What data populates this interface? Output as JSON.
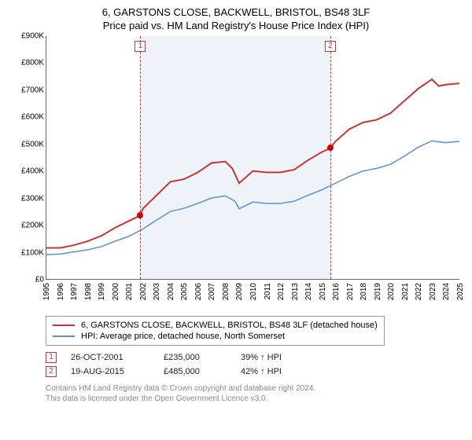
{
  "title": {
    "line1": "6, GARSTONS CLOSE, BACKWELL, BRISTOL, BS48 3LF",
    "line2": "Price paid vs. HM Land Registry's House Price Index (HPI)"
  },
  "chart": {
    "type": "line",
    "x_domain": [
      1995,
      2025
    ],
    "y_domain": [
      0,
      900000
    ],
    "y_ticks": [
      0,
      100000,
      200000,
      300000,
      400000,
      500000,
      600000,
      700000,
      800000,
      900000
    ],
    "y_tick_labels": [
      "£0",
      "£100K",
      "£200K",
      "£300K",
      "£400K",
      "£500K",
      "£600K",
      "£700K",
      "£800K",
      "£900K"
    ],
    "x_ticks": [
      1995,
      1996,
      1997,
      1998,
      1999,
      2000,
      2001,
      2002,
      2003,
      2004,
      2005,
      2006,
      2007,
      2008,
      2009,
      2010,
      2011,
      2012,
      2013,
      2014,
      2015,
      2016,
      2017,
      2018,
      2019,
      2020,
      2021,
      2022,
      2023,
      2024,
      2025
    ],
    "shade_range": [
      2001.82,
      2015.63
    ],
    "shade_color": "#eef3fa",
    "background_color": "#ffffff",
    "axis_color": "#666666",
    "tick_fontsize": 10,
    "series": [
      {
        "id": "property",
        "label": "6, GARSTONS CLOSE, BACKWELL, BRISTOL, BS48 3LF (detached house)",
        "color": "#cc3333",
        "line_width": 2,
        "points": [
          [
            1995,
            115000
          ],
          [
            1996,
            115000
          ],
          [
            1997,
            125000
          ],
          [
            1998,
            140000
          ],
          [
            1999,
            160000
          ],
          [
            2000,
            190000
          ],
          [
            2001,
            215000
          ],
          [
            2001.82,
            235000
          ],
          [
            2002,
            260000
          ],
          [
            2003,
            310000
          ],
          [
            2004,
            360000
          ],
          [
            2005,
            370000
          ],
          [
            2006,
            395000
          ],
          [
            2007,
            430000
          ],
          [
            2008,
            435000
          ],
          [
            2008.5,
            410000
          ],
          [
            2009,
            355000
          ],
          [
            2010,
            400000
          ],
          [
            2011,
            395000
          ],
          [
            2012,
            395000
          ],
          [
            2013,
            405000
          ],
          [
            2014,
            440000
          ],
          [
            2015,
            470000
          ],
          [
            2015.63,
            485000
          ],
          [
            2016,
            510000
          ],
          [
            2017,
            555000
          ],
          [
            2018,
            580000
          ],
          [
            2019,
            590000
          ],
          [
            2020,
            615000
          ],
          [
            2021,
            660000
          ],
          [
            2022,
            705000
          ],
          [
            2023,
            740000
          ],
          [
            2023.5,
            715000
          ],
          [
            2024,
            720000
          ],
          [
            2025,
            725000
          ]
        ]
      },
      {
        "id": "hpi",
        "label": "HPI: Average price, detached house, North Somerset",
        "color": "#5b8fd6",
        "line_width": 1.5,
        "points": [
          [
            1995,
            90000
          ],
          [
            1996,
            92000
          ],
          [
            1997,
            100000
          ],
          [
            1998,
            108000
          ],
          [
            1999,
            120000
          ],
          [
            2000,
            140000
          ],
          [
            2001,
            158000
          ],
          [
            2002,
            185000
          ],
          [
            2003,
            218000
          ],
          [
            2004,
            250000
          ],
          [
            2005,
            262000
          ],
          [
            2006,
            280000
          ],
          [
            2007,
            300000
          ],
          [
            2008,
            308000
          ],
          [
            2008.7,
            288000
          ],
          [
            2009,
            260000
          ],
          [
            2010,
            285000
          ],
          [
            2011,
            280000
          ],
          [
            2012,
            280000
          ],
          [
            2013,
            288000
          ],
          [
            2014,
            310000
          ],
          [
            2015,
            330000
          ],
          [
            2016,
            355000
          ],
          [
            2017,
            380000
          ],
          [
            2018,
            400000
          ],
          [
            2019,
            410000
          ],
          [
            2020,
            425000
          ],
          [
            2021,
            455000
          ],
          [
            2022,
            488000
          ],
          [
            2023,
            512000
          ],
          [
            2024,
            505000
          ],
          [
            2025,
            510000
          ]
        ]
      }
    ],
    "sale_markers": [
      {
        "n": "1",
        "x": 2001.82,
        "y": 235000
      },
      {
        "n": "2",
        "x": 2015.63,
        "y": 485000
      }
    ],
    "marker_label_y_offset": -18
  },
  "legend": {
    "items": [
      {
        "series": "property"
      },
      {
        "series": "hpi"
      }
    ]
  },
  "sales": [
    {
      "n": "1",
      "date": "26-OCT-2001",
      "price": "£235,000",
      "delta": "39% ↑ HPI"
    },
    {
      "n": "2",
      "date": "19-AUG-2015",
      "price": "£485,000",
      "delta": "42% ↑ HPI"
    }
  ],
  "footnote": {
    "line1": "Contains HM Land Registry data © Crown copyright and database right 2024.",
    "line2": "This data is licensed under the Open Government Licence v3.0."
  }
}
